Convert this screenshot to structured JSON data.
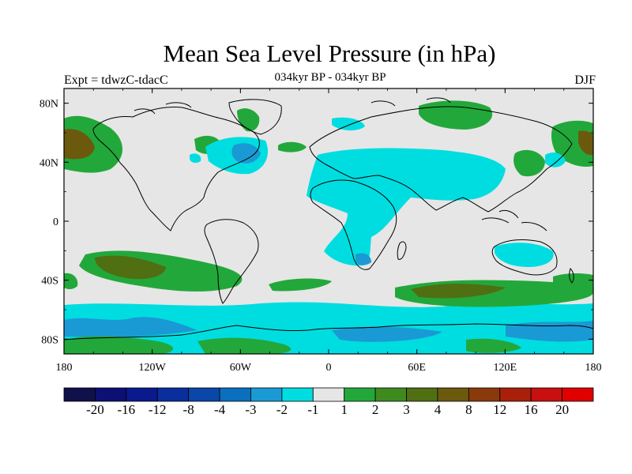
{
  "title": "Mean Sea Level Pressure (in hPa)",
  "left_string": "Expt = tdwzC-tdacC",
  "center_string": "034kyr BP - 034kyr BP",
  "right_string": "DJF",
  "map": {
    "projection": "cylindrical-equidistant",
    "lon_range": [
      -180,
      180
    ],
    "lat_range": [
      -90,
      90
    ],
    "x_ticks": [
      "180",
      "120W",
      "60W",
      "0",
      "60E",
      "120E",
      "180"
    ],
    "y_ticks": [
      "80N",
      "40N",
      "0",
      "40S",
      "80S"
    ],
    "background_color": "#e6e6e6",
    "coastline_color": "#000000"
  },
  "colorbar": {
    "labels": [
      "-20",
      "-16",
      "-12",
      "-8",
      "-4",
      "-3",
      "-2",
      "-1",
      "1",
      "2",
      "3",
      "4",
      "8",
      "12",
      "16",
      "20"
    ],
    "colors": [
      "#10104a",
      "#0c0f73",
      "#0a1a8c",
      "#0a2e9c",
      "#0a47a8",
      "#0a6fbf",
      "#1a9ad4",
      "#00dde0",
      "#e6e6e6",
      "#22a83a",
      "#3f8a1f",
      "#4f6f12",
      "#6b5a0e",
      "#8a3a0a",
      "#a8200a",
      "#c81010",
      "#e00000"
    ]
  }
}
